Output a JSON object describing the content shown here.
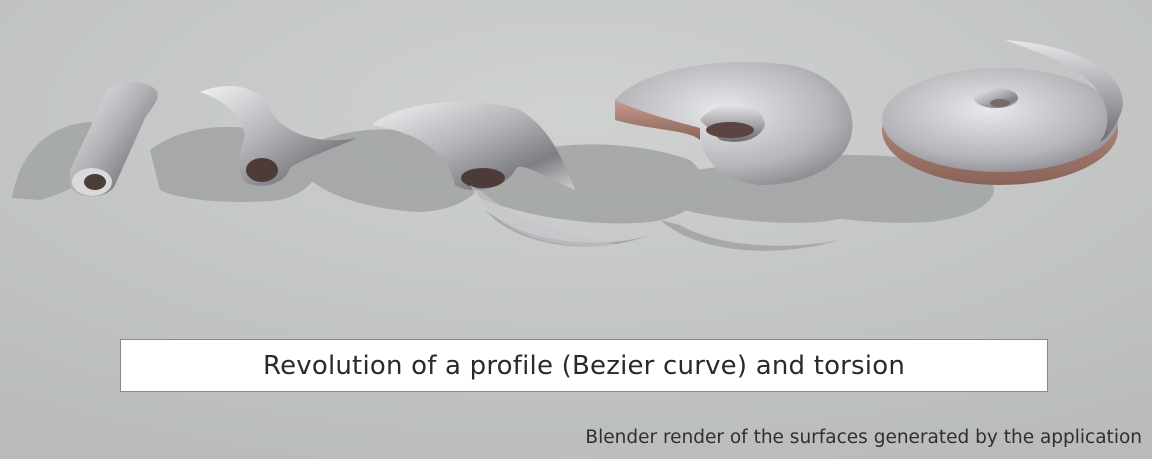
{
  "caption": "Revolution of a profile (Bezier curve) and torsion",
  "credit": "Blender render of the surfaces generated by the application",
  "colors": {
    "background": "#c3c6c5",
    "metal_light": "#eeeef0",
    "metal_mid": "#a9a9ae",
    "metal_dark": "#6e6e74",
    "copper": "#a57b6f",
    "shadow": "#9a9d9c",
    "caption_box": "#ffffff"
  }
}
